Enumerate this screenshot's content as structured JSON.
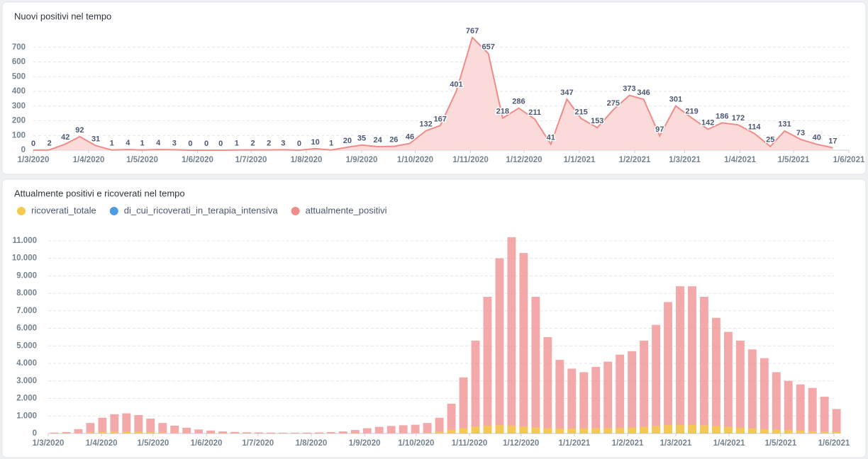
{
  "chart_data": [
    {
      "type": "area",
      "title": "Nuovi positivi nel tempo",
      "color": "#ef8c89",
      "fill_color": "#fbdada",
      "grid": true,
      "x": [
        "1/3/2020",
        "10/3/2020",
        "19/3/2020",
        "27/3/2020",
        "5/4/2020",
        "14/4/2020",
        "23/4/2020",
        "1/5/2020",
        "10/5/2020",
        "19/5/2020",
        "28/5/2020",
        "6/6/2020",
        "14/6/2020",
        "23/6/2020",
        "2/7/2020",
        "11/7/2020",
        "19/7/2020",
        "28/7/2020",
        "6/8/2020",
        "15/8/2020",
        "24/8/2020",
        "1/9/2020",
        "10/9/2020",
        "19/9/2020",
        "28/9/2020",
        "7/10/2020",
        "15/10/2020",
        "24/10/2020",
        "2/11/2020",
        "11/11/2020",
        "19/11/2020",
        "28/11/2020",
        "7/12/2020",
        "16/12/2020",
        "25/12/2020",
        "2/1/2021",
        "11/1/2021",
        "20/1/2021",
        "29/1/2021",
        "6/2/2021",
        "15/2/2021",
        "24/2/2021",
        "5/3/2021",
        "14/3/2021",
        "22/3/2021",
        "31/3/2021",
        "9/4/2021",
        "18/4/2021",
        "26/4/2021",
        "5/5/2021",
        "14/5/2021",
        "23/5/2021"
      ],
      "values": [
        0,
        2,
        42,
        92,
        31,
        1,
        4,
        1,
        4,
        3,
        0,
        0,
        0,
        1,
        2,
        2,
        3,
        0,
        10,
        1,
        20,
        35,
        24,
        26,
        46,
        132,
        167,
        401,
        767,
        657,
        218,
        286,
        211,
        41,
        347,
        215,
        153,
        275,
        373,
        346,
        97,
        301,
        219,
        142,
        186,
        172,
        114,
        25,
        131,
        73,
        40,
        17
      ],
      "xlim": [
        "1/3/2020",
        "1/6/2021"
      ],
      "xticks": [
        "1/3/2020",
        "1/4/2020",
        "1/5/2020",
        "1/6/2020",
        "1/7/2020",
        "1/8/2020",
        "1/9/2020",
        "1/10/2020",
        "1/11/2020",
        "1/12/2020",
        "1/1/2021",
        "1/2/2021",
        "1/3/2021",
        "1/4/2021",
        "1/5/2021",
        "1/6/2021"
      ],
      "ylim": [
        0,
        800
      ],
      "yticks": [
        0,
        100,
        200,
        300,
        400,
        500,
        600,
        700
      ]
    },
    {
      "type": "bar",
      "title": "Attualmente positivi e ricoverati nel tempo",
      "grid": true,
      "legend": "top-left",
      "x": [
        "1/3/2020",
        "8/3/2020",
        "15/3/2020",
        "22/3/2020",
        "29/3/2020",
        "5/4/2020",
        "12/4/2020",
        "19/4/2020",
        "26/4/2020",
        "3/5/2020",
        "10/5/2020",
        "17/5/2020",
        "24/5/2020",
        "31/5/2020",
        "7/6/2020",
        "14/6/2020",
        "21/6/2020",
        "28/6/2020",
        "5/7/2020",
        "12/7/2020",
        "19/7/2020",
        "26/7/2020",
        "2/8/2020",
        "9/8/2020",
        "16/8/2020",
        "23/8/2020",
        "30/8/2020",
        "6/9/2020",
        "13/9/2020",
        "20/9/2020",
        "27/9/2020",
        "4/10/2020",
        "11/10/2020",
        "18/10/2020",
        "25/10/2020",
        "1/11/2020",
        "8/11/2020",
        "15/11/2020",
        "22/11/2020",
        "29/11/2020",
        "6/12/2020",
        "13/12/2020",
        "20/12/2020",
        "27/12/2020",
        "3/1/2021",
        "10/1/2021",
        "17/1/2021",
        "24/1/2021",
        "31/1/2021",
        "7/2/2021",
        "14/2/2021",
        "21/2/2021",
        "28/2/2021",
        "7/3/2021",
        "14/3/2021",
        "21/3/2021",
        "28/3/2021",
        "4/4/2021",
        "11/4/2021",
        "18/4/2021",
        "25/4/2021",
        "2/5/2021",
        "9/5/2021",
        "16/5/2021",
        "23/5/2021",
        "30/5/2021"
      ],
      "series": [
        {
          "name": "ricoverati_totale",
          "color": "#f4cb4f",
          "values": [
            5,
            8,
            20,
            60,
            90,
            110,
            110,
            100,
            80,
            60,
            40,
            30,
            20,
            15,
            10,
            8,
            6,
            5,
            5,
            5,
            5,
            5,
            6,
            8,
            10,
            15,
            20,
            25,
            30,
            30,
            35,
            50,
            100,
            200,
            300,
            400,
            450,
            480,
            450,
            400,
            350,
            300,
            280,
            280,
            290,
            300,
            310,
            320,
            340,
            380,
            430,
            480,
            500,
            500,
            470,
            430,
            380,
            330,
            290,
            250,
            220,
            190,
            160,
            130,
            110,
            90
          ]
        },
        {
          "name": "di_cui_ricoverati_in_terapia_intensiva",
          "color": "#4c9de3",
          "values": [
            1,
            2,
            4,
            10,
            15,
            18,
            18,
            15,
            12,
            9,
            6,
            5,
            3,
            2,
            2,
            1,
            1,
            1,
            1,
            1,
            1,
            1,
            1,
            1,
            2,
            2,
            3,
            4,
            5,
            5,
            5,
            7,
            12,
            25,
            40,
            55,
            60,
            60,
            55,
            50,
            45,
            40,
            38,
            38,
            40,
            42,
            44,
            45,
            47,
            50,
            55,
            60,
            62,
            62,
            60,
            55,
            50,
            45,
            40,
            35,
            30,
            26,
            22,
            18,
            15,
            12
          ]
        },
        {
          "name": "attualmente_positivi",
          "color": "#ef8c8c",
          "values": [
            50,
            80,
            250,
            600,
            900,
            1100,
            1150,
            1050,
            850,
            600,
            450,
            330,
            230,
            170,
            120,
            90,
            70,
            60,
            50,
            45,
            45,
            50,
            60,
            80,
            120,
            200,
            300,
            380,
            430,
            470,
            500,
            600,
            900,
            1700,
            3200,
            5300,
            7800,
            10000,
            11200,
            10300,
            7800,
            5500,
            4200,
            3700,
            3500,
            3800,
            4100,
            4500,
            4700,
            5300,
            6200,
            7500,
            8400,
            8400,
            7800,
            6600,
            5800,
            5300,
            4800,
            4300,
            3500,
            3000,
            2800,
            2600,
            2100,
            1400
          ]
        }
      ],
      "xlim": [
        "1/3/2020",
        "1/6/2021"
      ],
      "xticks": [
        "1/3/2020",
        "1/4/2020",
        "1/5/2020",
        "1/6/2020",
        "1/7/2020",
        "1/8/2020",
        "1/9/2020",
        "1/10/2020",
        "1/11/2020",
        "1/12/2020",
        "1/1/2021",
        "1/2/2021",
        "1/3/2021",
        "1/4/2021",
        "1/5/2021",
        "1/6/2021"
      ],
      "ylim": [
        0,
        11600
      ],
      "yticks": [
        0,
        {
          "value": 1000,
          "label": "1.000"
        },
        {
          "value": 2000,
          "label": "2.000"
        },
        {
          "value": 3000,
          "label": "3.000"
        },
        {
          "value": 4000,
          "label": "4.000"
        },
        {
          "value": 5000,
          "label": "5.000"
        },
        {
          "value": 6000,
          "label": "6.000"
        },
        {
          "value": 7000,
          "label": "7.000"
        },
        {
          "value": 8000,
          "label": "8.000"
        },
        {
          "value": 9000,
          "label": "9.000"
        },
        {
          "value": 10000,
          "label": "10.000"
        },
        {
          "value": 11000,
          "label": "11.000"
        }
      ]
    }
  ]
}
